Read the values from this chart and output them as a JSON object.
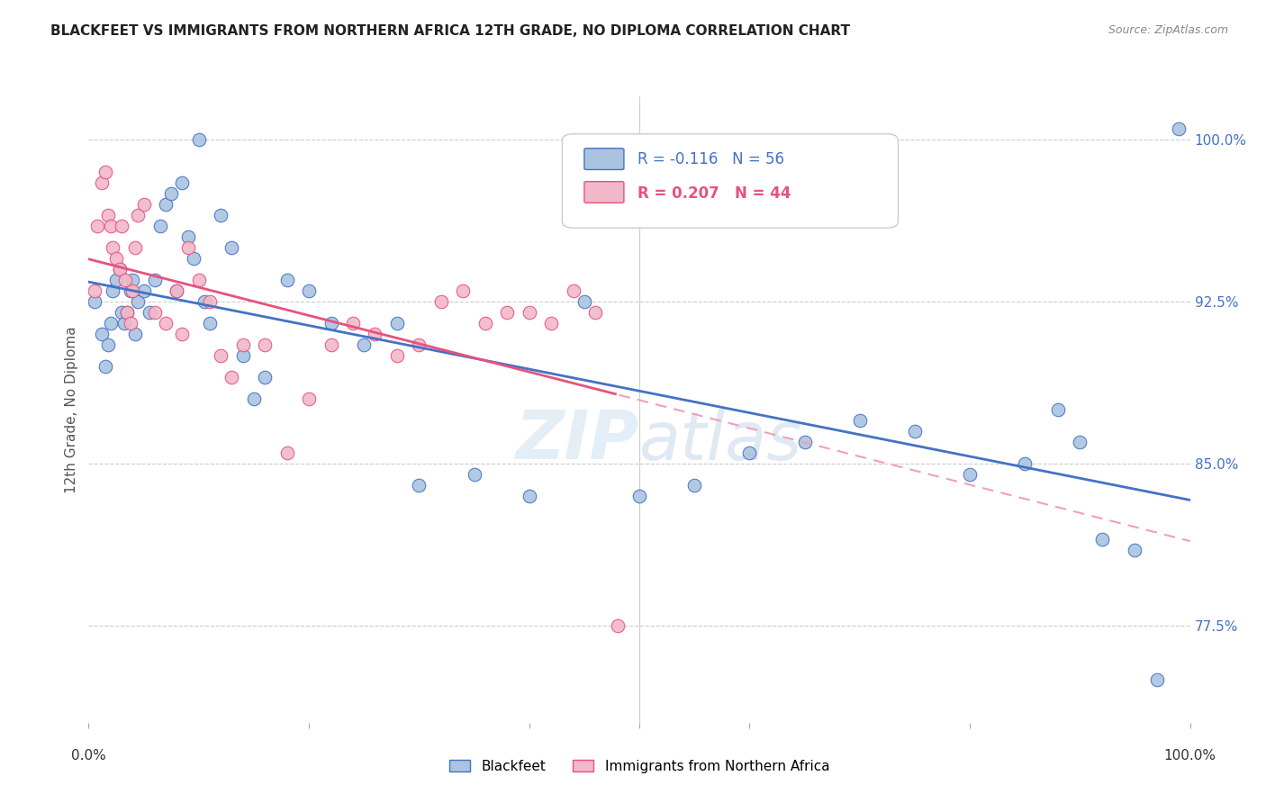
{
  "title": "BLACKFEET VS IMMIGRANTS FROM NORTHERN AFRICA 12TH GRADE, NO DIPLOMA CORRELATION CHART",
  "source": "Source: ZipAtlas.com",
  "ylabel": "12th Grade, No Diploma",
  "legend_label1": "Blackfeet",
  "legend_label2": "Immigrants from Northern Africa",
  "r1": "-0.116",
  "n1": "56",
  "r2": "0.207",
  "n2": "44",
  "xmin": 0.0,
  "xmax": 1.0,
  "ymin": 73.0,
  "ymax": 102.0,
  "color_blue": "#aac4e0",
  "color_pink": "#f0b8c8",
  "line_blue": "#4472c4",
  "line_pink": "#e8527d",
  "line_pink_dash": "#f0a0b8",
  "watermark_zip": "ZIP",
  "watermark_atlas": "atlas",
  "ytick_vals": [
    77.5,
    85.0,
    92.5,
    100.0
  ],
  "blue_x": [
    0.005,
    0.012,
    0.015,
    0.018,
    0.02,
    0.022,
    0.025,
    0.028,
    0.03,
    0.032,
    0.035,
    0.038,
    0.04,
    0.042,
    0.045,
    0.05,
    0.055,
    0.06,
    0.065,
    0.07,
    0.075,
    0.08,
    0.085,
    0.09,
    0.095,
    0.1,
    0.105,
    0.11,
    0.12,
    0.13,
    0.14,
    0.15,
    0.16,
    0.18,
    0.2,
    0.22,
    0.25,
    0.28,
    0.3,
    0.35,
    0.4,
    0.45,
    0.5,
    0.55,
    0.6,
    0.65,
    0.7,
    0.75,
    0.8,
    0.85,
    0.88,
    0.9,
    0.92,
    0.95,
    0.97,
    0.99
  ],
  "blue_y": [
    92.5,
    91.0,
    89.5,
    90.5,
    91.5,
    93.0,
    93.5,
    94.0,
    92.0,
    91.5,
    92.0,
    93.0,
    93.5,
    91.0,
    92.5,
    93.0,
    92.0,
    93.5,
    96.0,
    97.0,
    97.5,
    93.0,
    98.0,
    95.5,
    94.5,
    100.0,
    92.5,
    91.5,
    96.5,
    95.0,
    90.0,
    88.0,
    89.0,
    93.5,
    93.0,
    91.5,
    90.5,
    91.5,
    84.0,
    84.5,
    83.5,
    92.5,
    83.5,
    84.0,
    85.5,
    86.0,
    87.0,
    86.5,
    84.5,
    85.0,
    87.5,
    86.0,
    81.5,
    81.0,
    75.0,
    100.5
  ],
  "pink_x": [
    0.005,
    0.008,
    0.012,
    0.015,
    0.018,
    0.02,
    0.022,
    0.025,
    0.028,
    0.03,
    0.033,
    0.035,
    0.038,
    0.04,
    0.042,
    0.045,
    0.05,
    0.06,
    0.07,
    0.08,
    0.085,
    0.09,
    0.1,
    0.11,
    0.12,
    0.13,
    0.14,
    0.16,
    0.18,
    0.2,
    0.22,
    0.24,
    0.26,
    0.28,
    0.3,
    0.32,
    0.34,
    0.36,
    0.38,
    0.4,
    0.42,
    0.44,
    0.46,
    0.48
  ],
  "pink_y": [
    93.0,
    96.0,
    98.0,
    98.5,
    96.5,
    96.0,
    95.0,
    94.5,
    94.0,
    96.0,
    93.5,
    92.0,
    91.5,
    93.0,
    95.0,
    96.5,
    97.0,
    92.0,
    91.5,
    93.0,
    91.0,
    95.0,
    93.5,
    92.5,
    90.0,
    89.0,
    90.5,
    90.5,
    85.5,
    88.0,
    90.5,
    91.5,
    91.0,
    90.0,
    90.5,
    92.5,
    93.0,
    91.5,
    92.0,
    92.0,
    91.5,
    93.0,
    92.0,
    77.5
  ]
}
